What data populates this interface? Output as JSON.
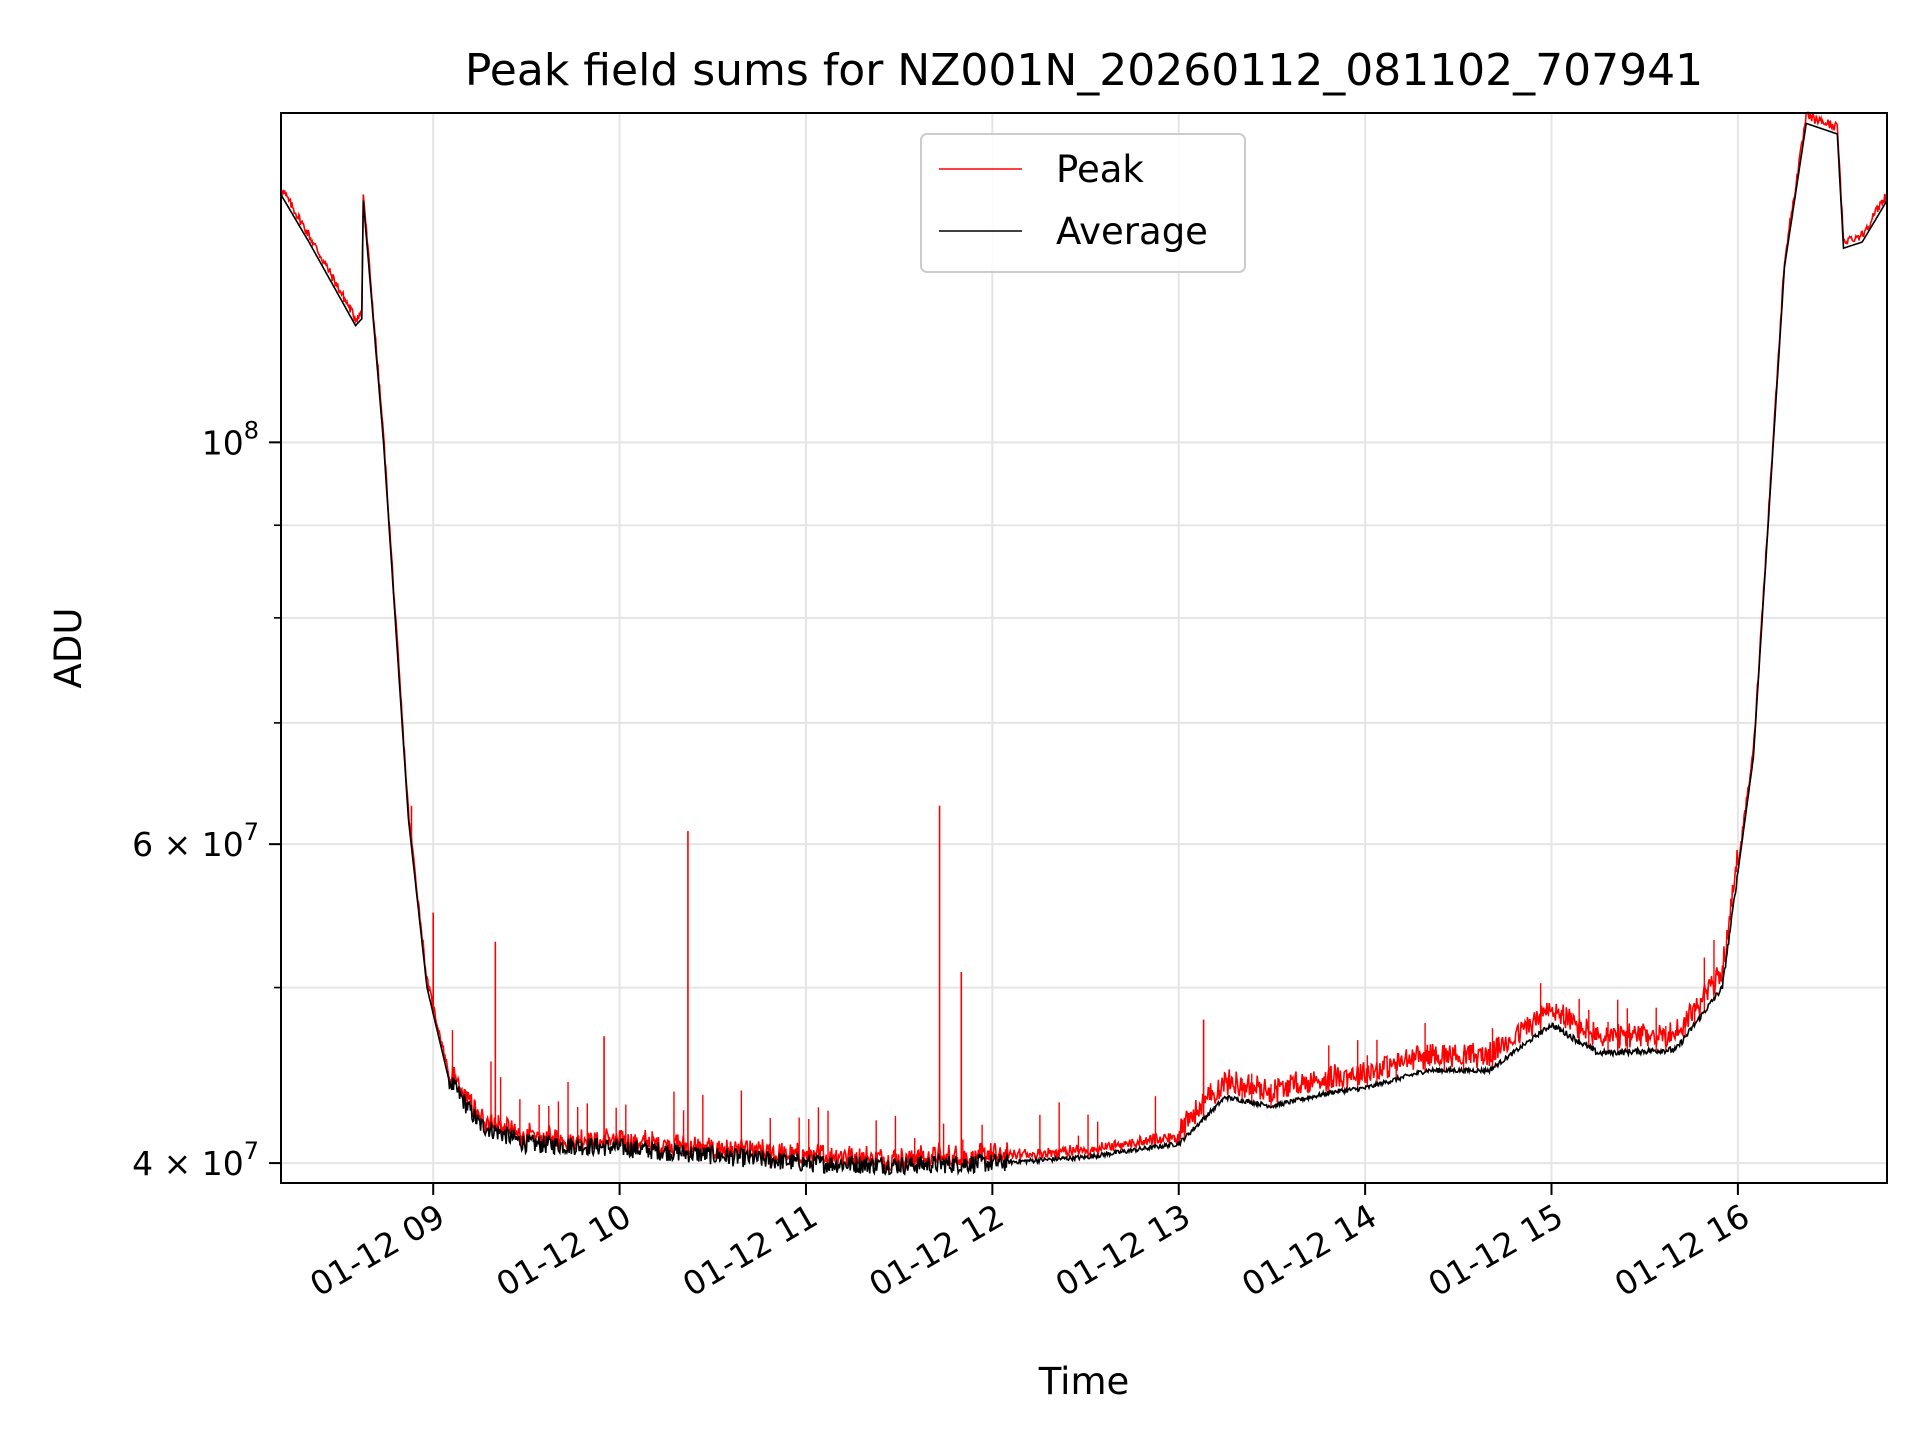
{
  "chart_data": {
    "type": "line",
    "title": "Peak field sums for NZ001N_20260112_081102_707941",
    "xlabel": "Time",
    "ylabel": "ADU",
    "x_range": [
      "2026-01-12 08:11",
      "2026-01-12 16:48"
    ],
    "ylim": [
      39000000,
      152000000
    ],
    "yscale": "log",
    "grid": true,
    "legend_placement": "upper center",
    "x_ticks": [
      {
        "time": "2026-01-12 09:00",
        "label": "01-12 09"
      },
      {
        "time": "2026-01-12 10:00",
        "label": "01-12 10"
      },
      {
        "time": "2026-01-12 11:00",
        "label": "01-12 11"
      },
      {
        "time": "2026-01-12 12:00",
        "label": "01-12 12"
      },
      {
        "time": "2026-01-12 13:00",
        "label": "01-12 13"
      },
      {
        "time": "2026-01-12 14:00",
        "label": "01-12 14"
      },
      {
        "time": "2026-01-12 15:00",
        "label": "01-12 15"
      },
      {
        "time": "2026-01-12 16:00",
        "label": "01-12 16"
      }
    ],
    "y_ticks": [
      {
        "value": 40000000,
        "label": "4 × 10^7",
        "mantissa": "4 × 10",
        "exponent": "7"
      },
      {
        "value": 60000000,
        "label": "6 × 10^7",
        "mantissa": "6 × 10",
        "exponent": "7"
      },
      {
        "value": 100000000,
        "label": "10^8",
        "mantissa": "10",
        "exponent": "8"
      }
    ],
    "y_minor_ticks": [
      50000000,
      70000000,
      80000000,
      90000000
    ],
    "series": [
      {
        "name": "Peak",
        "color": "#ff0000",
        "spikes": [
          {
            "time": "2026-01-12 08:53",
            "value": 63000000
          },
          {
            "time": "2026-01-12 09:00",
            "value": 55000000
          },
          {
            "time": "2026-01-12 09:20",
            "value": 53000000
          },
          {
            "time": "2026-01-12 09:55",
            "value": 47000000
          },
          {
            "time": "2026-01-12 10:22",
            "value": 61000000
          },
          {
            "time": "2026-01-12 11:43",
            "value": 63000000
          },
          {
            "time": "2026-01-12 11:50",
            "value": 51000000
          },
          {
            "time": "2026-01-12 13:08",
            "value": 48000000
          }
        ]
      },
      {
        "name": "Average",
        "color": "#000000",
        "points": [
          {
            "time": "2026-01-12 08:11",
            "value": 137000000
          },
          {
            "time": "2026-01-12 08:20",
            "value": 129000000
          },
          {
            "time": "2026-01-12 08:35",
            "value": 116000000
          },
          {
            "time": "2026-01-12 08:37",
            "value": 117000000
          },
          {
            "time": "2026-01-12 08:37.5",
            "value": 136000000
          },
          {
            "time": "2026-01-12 08:44",
            "value": 100000000
          },
          {
            "time": "2026-01-12 08:52",
            "value": 62000000
          },
          {
            "time": "2026-01-12 08:58",
            "value": 50000000
          },
          {
            "time": "2026-01-12 09:05",
            "value": 44500000
          },
          {
            "time": "2026-01-12 09:15",
            "value": 42000000
          },
          {
            "time": "2026-01-12 09:30",
            "value": 41000000
          },
          {
            "time": "2026-01-12 10:00",
            "value": 40800000
          },
          {
            "time": "2026-01-12 10:30",
            "value": 40400000
          },
          {
            "time": "2026-01-12 11:00",
            "value": 40000000
          },
          {
            "time": "2026-01-12 11:30",
            "value": 39900000
          },
          {
            "time": "2026-01-12 12:00",
            "value": 40000000
          },
          {
            "time": "2026-01-12 12:30",
            "value": 40300000
          },
          {
            "time": "2026-01-12 13:00",
            "value": 41000000
          },
          {
            "time": "2026-01-12 13:15",
            "value": 43500000
          },
          {
            "time": "2026-01-12 13:30",
            "value": 43000000
          },
          {
            "time": "2026-01-12 13:50",
            "value": 43800000
          },
          {
            "time": "2026-01-12 14:00",
            "value": 44000000
          },
          {
            "time": "2026-01-12 14:20",
            "value": 45000000
          },
          {
            "time": "2026-01-12 14:40",
            "value": 45000000
          },
          {
            "time": "2026-01-12 15:00",
            "value": 47700000
          },
          {
            "time": "2026-01-12 15:15",
            "value": 46000000
          },
          {
            "time": "2026-01-12 15:40",
            "value": 46200000
          },
          {
            "time": "2026-01-12 15:55",
            "value": 50000000
          },
          {
            "time": "2026-01-12 16:05",
            "value": 67000000
          },
          {
            "time": "2026-01-12 16:15",
            "value": 125000000
          },
          {
            "time": "2026-01-12 16:22",
            "value": 150000000
          },
          {
            "time": "2026-01-12 16:32",
            "value": 148000000
          },
          {
            "time": "2026-01-12 16:34",
            "value": 128000000
          },
          {
            "time": "2026-01-12 16:40",
            "value": 129000000
          },
          {
            "time": "2026-01-12 16:48",
            "value": 136000000
          }
        ]
      }
    ]
  }
}
